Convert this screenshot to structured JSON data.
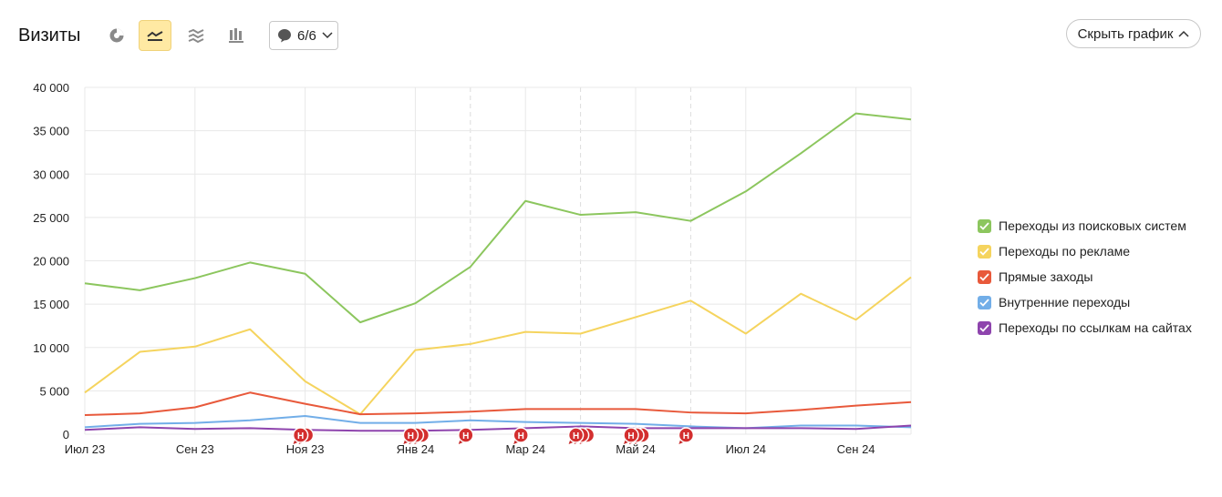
{
  "header": {
    "title": "Визиты",
    "filter_label": "6/6",
    "hide_label": "Скрыть график"
  },
  "view_buttons": [
    {
      "name": "pie-chart-icon",
      "active": false
    },
    {
      "name": "line-chart-icon",
      "active": true
    },
    {
      "name": "area-chart-icon",
      "active": false
    },
    {
      "name": "bar-chart-icon",
      "active": false
    }
  ],
  "chart_data": {
    "type": "line",
    "categories": [
      "Июл 23",
      "Авг 23",
      "Сен 23",
      "Окт 23",
      "Ноя 23",
      "Дек 23",
      "Янв 24",
      "Фев 24",
      "Мар 24",
      "Апр 24",
      "Май 24",
      "Июн 24",
      "Июл 24",
      "Авг 24",
      "Сен 24",
      "Окт 24"
    ],
    "x_tick_labels": [
      "Июл 23",
      "Сен 23",
      "Ноя 23",
      "Янв 24",
      "Мар 24",
      "Май 24",
      "Июл 24",
      "Сен 24"
    ],
    "y_ticks": [
      "0",
      "5 000",
      "10 000",
      "15 000",
      "20 000",
      "25 000",
      "30 000",
      "35 000",
      "40 000"
    ],
    "ylim": [
      0,
      40000
    ],
    "grid": true,
    "legend_position": "right",
    "series": [
      {
        "name": "Переходы из поисковых систем",
        "color": "#8cc65e",
        "values": [
          17400,
          16600,
          18000,
          19800,
          18500,
          12900,
          15100,
          19300,
          26900,
          25300,
          25600,
          24600,
          28000,
          32400,
          37000,
          36300
        ]
      },
      {
        "name": "Переходы по рекламе",
        "color": "#f5d45e",
        "values": [
          4800,
          9500,
          10100,
          12100,
          6100,
          2300,
          9700,
          10400,
          11800,
          11600,
          13500,
          15400,
          11600,
          16200,
          13200,
          18100
        ]
      },
      {
        "name": "Прямые заходы",
        "color": "#e8593b",
        "values": [
          2200,
          2400,
          3100,
          4800,
          3500,
          2300,
          2400,
          2600,
          2900,
          2900,
          2900,
          2500,
          2400,
          2800,
          3300,
          3700
        ]
      },
      {
        "name": "Внутренние переходы",
        "color": "#72aee8",
        "values": [
          800,
          1200,
          1300,
          1600,
          2100,
          1300,
          1300,
          1600,
          1400,
          1300,
          1200,
          900,
          700,
          1000,
          1000,
          800
        ]
      },
      {
        "name": "Переходы по ссылкам на сайтах",
        "color": "#8e44ad",
        "values": [
          500,
          800,
          600,
          700,
          500,
          400,
          400,
          500,
          700,
          900,
          700,
          700,
          700,
          700,
          600,
          1000
        ]
      }
    ],
    "annotation_letter": "Н",
    "annotations": [
      {
        "month": 4.0,
        "count": 2
      },
      {
        "month": 6.0,
        "count": 3
      },
      {
        "month": 7.0,
        "count": 1
      },
      {
        "month": 8.0,
        "count": 1
      },
      {
        "month": 9.0,
        "count": 3
      },
      {
        "month": 10.0,
        "count": 3
      },
      {
        "month": 11.0,
        "count": 1
      }
    ]
  }
}
